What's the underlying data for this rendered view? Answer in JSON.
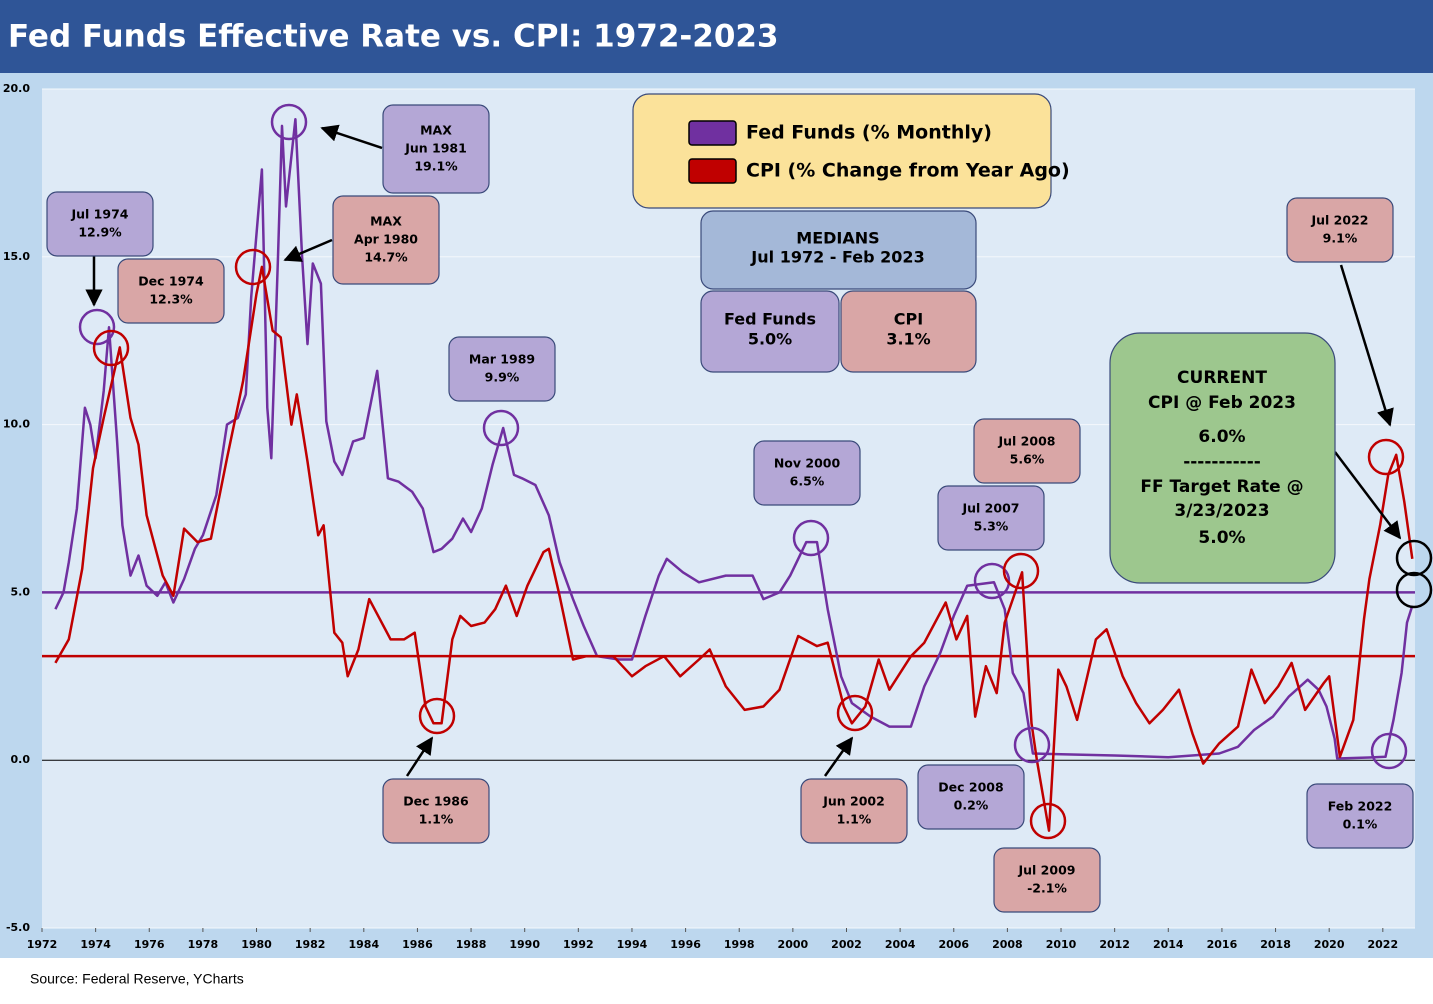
{
  "chart_data": {
    "type": "line",
    "title": "Fed Funds Effective Rate vs. CPI: 1972-2023",
    "source": "Source: Federal Reserve, YCharts",
    "xlim": [
      1972,
      2023.2
    ],
    "xticks": [
      1972,
      1974,
      1976,
      1978,
      1980,
      1982,
      1984,
      1986,
      1988,
      1990,
      1992,
      1994,
      1996,
      1998,
      2000,
      2002,
      2004,
      2006,
      2008,
      2010,
      2012,
      2014,
      2016,
      2018,
      2020,
      2022
    ],
    "ylim": [
      -5,
      20
    ],
    "yticks": [
      {
        "value": -5,
        "label": "-5.0"
      },
      {
        "value": 0,
        "label": "0.0"
      },
      {
        "value": 5,
        "label": "5.0"
      },
      {
        "value": 10,
        "label": "10.0"
      },
      {
        "value": 15,
        "label": "15.0"
      },
      {
        "value": 20,
        "label": "20.0"
      }
    ],
    "grid": true,
    "series": [
      {
        "name": "Fed Funds (% Monthly)",
        "color": "#7030a0",
        "x": [
          1972.5,
          1972.8,
          1973.0,
          1973.3,
          1973.6,
          1973.8,
          1974.0,
          1974.3,
          1974.5,
          1974.8,
          1975.0,
          1975.3,
          1975.6,
          1975.9,
          1976.3,
          1976.6,
          1976.9,
          1977.3,
          1977.7,
          1978.0,
          1978.5,
          1978.9,
          1979.3,
          1979.6,
          1979.8,
          1980.2,
          1980.4,
          1980.55,
          1980.8,
          1980.95,
          1981.1,
          1981.45,
          1981.7,
          1981.9,
          1982.1,
          1982.4,
          1982.6,
          1982.9,
          1983.2,
          1983.6,
          1984.0,
          1984.5,
          1984.9,
          1985.3,
          1985.8,
          1986.2,
          1986.6,
          1986.9,
          1987.3,
          1987.7,
          1988.0,
          1988.4,
          1988.8,
          1989.2,
          1989.6,
          1989.9,
          1990.4,
          1990.9,
          1991.3,
          1991.8,
          1992.2,
          1992.7,
          1993.5,
          1994.0,
          1994.5,
          1995.0,
          1995.3,
          1995.9,
          1996.5,
          1997.5,
          1998.5,
          1998.9,
          1999.5,
          1999.9,
          2000.5,
          2000.9,
          2001.3,
          2001.8,
          2002.2,
          2002.9,
          2003.6,
          2004.4,
          2004.9,
          2005.5,
          2006.0,
          2006.5,
          2007.5,
          2007.9,
          2008.2,
          2008.6,
          2008.95,
          2010,
          2012,
          2014,
          2015.9,
          2016.6,
          2017.2,
          2017.9,
          2018.5,
          2019.2,
          2019.6,
          2019.9,
          2020.2,
          2020.3,
          2021.5,
          2022.1,
          2022.4,
          2022.7,
          2022.9,
          2023.1
        ],
        "values": [
          4.5,
          5.0,
          5.9,
          7.5,
          10.5,
          10.0,
          9.0,
          11.0,
          12.9,
          9.5,
          7.0,
          5.5,
          6.1,
          5.2,
          4.9,
          5.3,
          4.7,
          5.4,
          6.3,
          6.7,
          7.9,
          10.0,
          10.2,
          10.9,
          13.8,
          17.6,
          10.5,
          9.0,
          15.0,
          18.9,
          16.5,
          19.1,
          15.0,
          12.4,
          14.8,
          14.2,
          10.1,
          8.9,
          8.5,
          9.5,
          9.6,
          11.6,
          8.4,
          8.3,
          8.0,
          7.5,
          6.2,
          6.3,
          6.6,
          7.2,
          6.8,
          7.5,
          8.8,
          9.9,
          8.5,
          8.4,
          8.2,
          7.3,
          5.9,
          4.8,
          4.0,
          3.1,
          3.0,
          3.0,
          4.3,
          5.5,
          6.0,
          5.6,
          5.3,
          5.5,
          5.5,
          4.8,
          5.0,
          5.5,
          6.5,
          6.5,
          4.5,
          2.5,
          1.7,
          1.3,
          1.0,
          1.0,
          2.2,
          3.2,
          4.3,
          5.2,
          5.3,
          4.5,
          2.6,
          2.0,
          0.2,
          0.18,
          0.14,
          0.09,
          0.2,
          0.4,
          0.9,
          1.3,
          1.9,
          2.4,
          2.1,
          1.6,
          0.65,
          0.05,
          0.08,
          0.1,
          1.2,
          2.6,
          4.1,
          4.6
        ]
      },
      {
        "name": "CPI (% Change from Year Ago)",
        "color": "#c00000",
        "x": [
          1972.5,
          1973.0,
          1973.5,
          1973.9,
          1974.3,
          1974.9,
          1975.3,
          1975.6,
          1975.9,
          1976.5,
          1976.9,
          1977.3,
          1977.8,
          1978.3,
          1978.9,
          1979.5,
          1980.0,
          1980.2,
          1980.6,
          1980.9,
          1981.3,
          1981.5,
          1981.9,
          1982.3,
          1982.5,
          1982.9,
          1983.2,
          1983.4,
          1983.8,
          1984.2,
          1984.6,
          1985.0,
          1985.5,
          1985.9,
          1986.3,
          1986.6,
          1986.9,
          1987.3,
          1987.6,
          1988.0,
          1988.5,
          1988.9,
          1989.3,
          1989.7,
          1990.1,
          1990.7,
          1990.9,
          1991.3,
          1991.8,
          1992.3,
          1993.3,
          1994.0,
          1994.5,
          1995.2,
          1995.8,
          1996.5,
          1996.9,
          1997.5,
          1998.2,
          1998.9,
          1999.5,
          2000.2,
          2000.9,
          2001.3,
          2001.9,
          2002.2,
          2002.7,
          2003.2,
          2003.6,
          2004.4,
          2004.9,
          2005.7,
          2006.1,
          2006.5,
          2006.8,
          2007.2,
          2007.6,
          2007.9,
          2008.55,
          2008.9,
          2009.1,
          2009.55,
          2009.9,
          2010.2,
          2010.6,
          2011.3,
          2011.7,
          2012.3,
          2012.8,
          2013.3,
          2013.8,
          2014.4,
          2014.9,
          2015.3,
          2015.9,
          2016.6,
          2017.1,
          2017.6,
          2018.1,
          2018.6,
          2019.1,
          2019.8,
          2020.0,
          2020.4,
          2020.9,
          2021.3,
          2021.5,
          2021.9,
          2022.2,
          2022.5,
          2022.8,
          2023.1
        ],
        "values": [
          2.9,
          3.6,
          5.7,
          8.7,
          10.2,
          12.3,
          10.2,
          9.4,
          7.3,
          5.5,
          4.9,
          6.9,
          6.5,
          6.6,
          9.0,
          11.3,
          13.9,
          14.7,
          12.8,
          12.6,
          10.0,
          10.9,
          8.9,
          6.7,
          7.0,
          3.8,
          3.5,
          2.5,
          3.3,
          4.8,
          4.2,
          3.6,
          3.6,
          3.8,
          1.6,
          1.1,
          1.1,
          3.6,
          4.3,
          4.0,
          4.1,
          4.5,
          5.2,
          4.3,
          5.2,
          6.2,
          6.3,
          4.9,
          3.0,
          3.1,
          3.1,
          2.5,
          2.8,
          3.1,
          2.5,
          3.0,
          3.3,
          2.2,
          1.5,
          1.6,
          2.1,
          3.7,
          3.4,
          3.5,
          1.6,
          1.1,
          1.6,
          3.0,
          2.1,
          3.1,
          3.5,
          4.7,
          3.6,
          4.3,
          1.3,
          2.8,
          2.0,
          4.1,
          5.6,
          1.1,
          0.0,
          -2.1,
          2.7,
          2.2,
          1.2,
          3.6,
          3.9,
          2.5,
          1.7,
          1.1,
          1.5,
          2.1,
          0.8,
          -0.1,
          0.5,
          1.0,
          2.7,
          1.7,
          2.2,
          2.9,
          1.5,
          2.3,
          2.5,
          0.1,
          1.2,
          4.2,
          5.4,
          7.0,
          8.5,
          9.1,
          7.7,
          6.0
        ]
      }
    ],
    "medians": {
      "title": "MEDIANS",
      "period": "Jul 1972 - Feb 2023",
      "items": [
        {
          "name": "Fed Funds",
          "value": 5.0,
          "label": "5.0%",
          "color": "#7030a0"
        },
        {
          "name": "CPI",
          "value": 3.1,
          "label": "3.1%",
          "color": "#c00000"
        }
      ]
    },
    "current": [
      "CURRENT",
      "CPI @ Feb 2023",
      "6.0%",
      "-----------",
      "FF Target Rate @",
      "3/23/2023",
      "5.0%"
    ],
    "annotations": [
      [
        "Jul 1974",
        "12.9%"
      ],
      [
        "Dec 1974",
        "12.3%"
      ],
      [
        "MAX",
        "Jun 1981",
        "19.1%"
      ],
      [
        "MAX",
        "Apr 1980",
        "14.7%"
      ],
      [
        "Mar 1989",
        "9.9%"
      ],
      [
        "Dec 1986",
        "1.1%"
      ],
      [
        "Nov 2000",
        "6.5%"
      ],
      [
        "Jun 2002",
        "1.1%"
      ],
      [
        "Jul 2007",
        "5.3%"
      ],
      [
        "Jul  2008",
        "5.6%"
      ],
      [
        "Dec 2008",
        "0.2%"
      ],
      [
        "Jul  2009",
        "-2.1%"
      ],
      [
        "Jul  2022",
        "9.1%"
      ],
      [
        "Feb 2022",
        "0.1%"
      ]
    ]
  }
}
